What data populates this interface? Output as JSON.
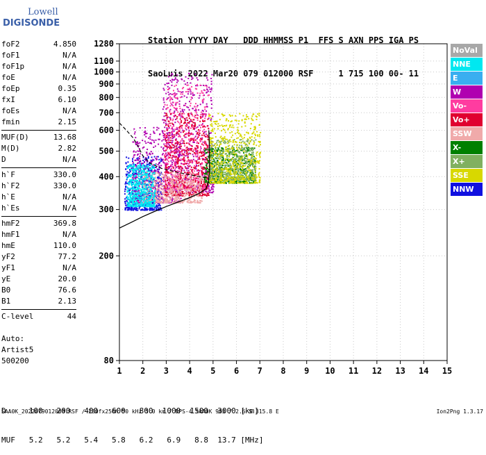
{
  "logo": {
    "line1": "Lowell",
    "line2": "DIGISONDE"
  },
  "header": {
    "line1": "Station YYYY DAY   DDD HHMMSS P1  FFS S AXN PPS IGA PS",
    "line2": "SaoLuis 2022 Mar20 079 012000 RSF     1 715 100 00- 11"
  },
  "params": {
    "groups": [
      [
        [
          "foF2",
          "4.850"
        ],
        [
          "foF1",
          "N/A"
        ],
        [
          "foF1p",
          "N/A"
        ],
        [
          "foE",
          "N/A"
        ],
        [
          "foEp",
          "0.35"
        ],
        [
          "fxI",
          "6.10"
        ],
        [
          "foEs",
          "N/A"
        ],
        [
          "fmin",
          "2.15"
        ]
      ],
      [
        [
          "MUF(D)",
          "13.68"
        ],
        [
          "M(D)",
          "2.82"
        ],
        [
          "D",
          "N/A"
        ]
      ],
      [
        [
          "h`F",
          "330.0"
        ],
        [
          "h`F2",
          "330.0"
        ],
        [
          "h`E",
          "N/A"
        ],
        [
          "h`Es",
          "N/A"
        ]
      ],
      [
        [
          "hmF2",
          "369.8"
        ],
        [
          "hmF1",
          "N/A"
        ],
        [
          "hmE",
          "110.0"
        ],
        [
          "yF2",
          "77.2"
        ],
        [
          "yF1",
          "N/A"
        ],
        [
          "yE",
          "20.0"
        ],
        [
          "B0",
          "76.6"
        ],
        [
          "B1",
          "2.13"
        ]
      ],
      [
        [
          "C-level",
          "44"
        ]
      ]
    ]
  },
  "auto": {
    "line1": "Auto:",
    "line2": "Artist5",
    "line3": "500200"
  },
  "muf_table": {
    "d_label": "D",
    "d_values": [
      "100",
      "200",
      "400",
      "600",
      "800",
      "1000",
      "1500",
      "3000"
    ],
    "d_unit": "[km]",
    "muf_label": "MUF",
    "muf_values": [
      "5.2",
      "5.2",
      "5.4",
      "5.8",
      "6.2",
      "6.9",
      "8.8",
      "13.7"
    ],
    "muf_unit": "[MHz]"
  },
  "footer": "SAA0K_2022079012000.RSF / 280fx256h 50 kHz 5.0 km / DPS-4 SAA0K 903 / 2.6 S 315.8 E",
  "version": "Ion2Png 1.3.17",
  "legend": [
    {
      "label": "NoVal",
      "bg": "#a8a8a8"
    },
    {
      "label": "NNE",
      "bg": "#00e8f0"
    },
    {
      "label": "E",
      "bg": "#3aaef0"
    },
    {
      "label": "W",
      "bg": "#b000b0"
    },
    {
      "label": "Vo-",
      "bg": "#ff3ca0"
    },
    {
      "label": "Vo+",
      "bg": "#e00030"
    },
    {
      "label": "SSW",
      "bg": "#f0aaaa"
    },
    {
      "label": "X-",
      "bg": "#008000"
    },
    {
      "label": "X+",
      "bg": "#80b060"
    },
    {
      "label": "SSE",
      "bg": "#d8d800"
    },
    {
      "label": "NNW",
      "bg": "#1010e0"
    }
  ],
  "chart_data": {
    "type": "scatter",
    "title": "",
    "xlabel": "",
    "ylabel": "",
    "xlim": [
      1,
      15
    ],
    "ylim": [
      80,
      1280
    ],
    "y_scale": "log",
    "x_ticks": [
      1,
      2,
      3,
      4,
      5,
      6,
      7,
      8,
      9,
      10,
      11,
      12,
      13,
      14,
      15
    ],
    "y_ticks": [
      80,
      200,
      300,
      400,
      500,
      600,
      700,
      800,
      900,
      1000,
      1100,
      1280
    ],
    "grid": true,
    "legend_position": "right",
    "ionogram_regions": [
      {
        "color": "#1010e0",
        "x": [
          1.2,
          2.8
        ],
        "y": [
          300,
          480
        ]
      },
      {
        "color": "#b000b0",
        "x": [
          1.5,
          3.6
        ],
        "y": [
          320,
          620
        ]
      },
      {
        "color": "#b000b0",
        "x": [
          2.8,
          5.0
        ],
        "y": [
          350,
          1000
        ]
      },
      {
        "color": "#ff3ca0",
        "x": [
          2.9,
          4.8
        ],
        "y": [
          360,
          900
        ]
      },
      {
        "color": "#e00030",
        "x": [
          2.9,
          4.8
        ],
        "y": [
          340,
          700
        ]
      },
      {
        "color": "#008000",
        "x": [
          4.6,
          6.8
        ],
        "y": [
          380,
          520
        ]
      },
      {
        "color": "#80b060",
        "x": [
          4.8,
          6.8
        ],
        "y": [
          390,
          560
        ]
      },
      {
        "color": "#d8d800",
        "x": [
          4.8,
          7.0
        ],
        "y": [
          380,
          700
        ]
      },
      {
        "color": "#f0aaaa",
        "x": [
          2.0,
          4.5
        ],
        "y": [
          320,
          420
        ]
      },
      {
        "color": "#00e8f0",
        "x": [
          1.3,
          2.5
        ],
        "y": [
          310,
          450
        ]
      }
    ],
    "profile_solid": [
      [
        1.0,
        255
      ],
      [
        1.5,
        268
      ],
      [
        2.0,
        282
      ],
      [
        2.5,
        295
      ],
      [
        3.0,
        308
      ],
      [
        3.5,
        320
      ],
      [
        4.0,
        333
      ],
      [
        4.4,
        345
      ],
      [
        4.7,
        360
      ],
      [
        4.8,
        380
      ],
      [
        4.85,
        420
      ],
      [
        4.85,
        500
      ],
      [
        4.82,
        600
      ]
    ],
    "profile_dashed": [
      [
        1.0,
        640
      ],
      [
        1.3,
        600
      ],
      [
        1.6,
        560
      ],
      [
        1.8,
        520
      ],
      [
        2.0,
        480
      ],
      [
        2.3,
        450
      ],
      [
        2.8,
        430
      ],
      [
        3.5,
        415
      ],
      [
        4.3,
        402
      ],
      [
        4.8,
        395
      ]
    ]
  }
}
